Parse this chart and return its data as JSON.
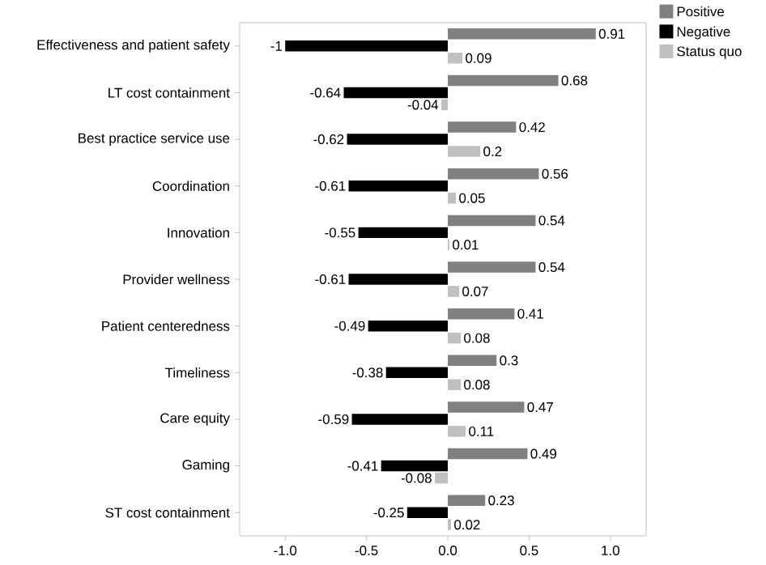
{
  "chart_data": {
    "type": "bar",
    "orientation": "horizontal",
    "categories": [
      "Effectiveness and patient safety",
      "LT cost containment",
      "Best practice service use",
      "Coordination",
      "Innovation",
      "Provider wellness",
      "Patient centeredness",
      "Timeliness",
      "Care equity",
      "Gaming",
      "ST cost containment"
    ],
    "series": [
      {
        "name": "Positive",
        "color": "#808080",
        "values": [
          0.91,
          0.68,
          0.42,
          0.56,
          0.54,
          0.54,
          0.41,
          0.3,
          0.47,
          0.49,
          0.23
        ]
      },
      {
        "name": "Negative",
        "color": "#000000",
        "values": [
          -1,
          -0.64,
          -0.62,
          -0.61,
          -0.55,
          -0.61,
          -0.49,
          -0.38,
          -0.59,
          -0.41,
          -0.25
        ]
      },
      {
        "name": "Status quo",
        "color": "#c0c0c0",
        "values": [
          0.09,
          -0.04,
          0.2,
          0.05,
          0.01,
          0.07,
          0.08,
          0.08,
          0.11,
          -0.08,
          0.02
        ]
      }
    ],
    "xlim": [
      -1.28,
      1.22
    ],
    "xticks": [
      {
        "value": -1,
        "label": "-1.0"
      },
      -0.5,
      {
        "value": 0,
        "label": "0.0"
      },
      0.5,
      {
        "value": 1,
        "label": "1.0"
      }
    ],
    "data_labels": true,
    "legend": "right",
    "grid": false
  }
}
